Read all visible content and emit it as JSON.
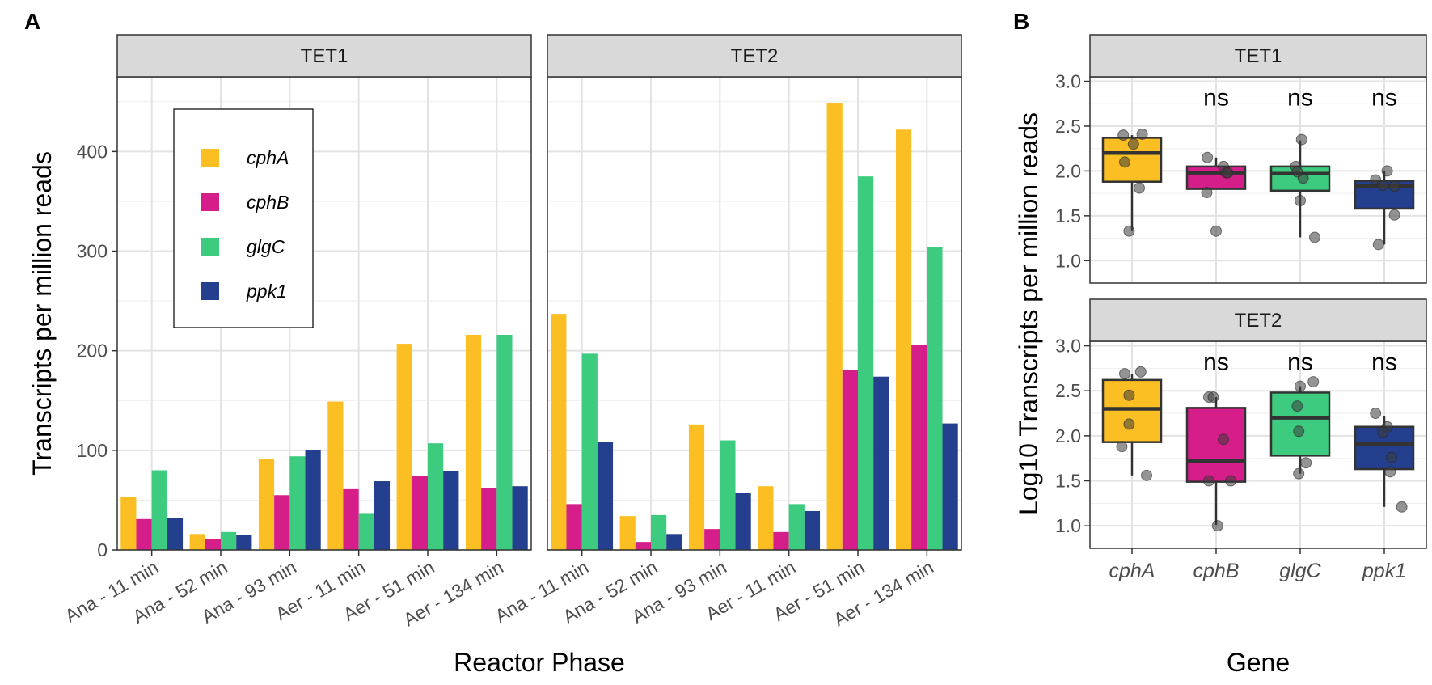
{
  "panel_labels": {
    "a": "A",
    "b": "B"
  },
  "chart_data": [
    {
      "type": "bar",
      "panel": "A",
      "xlabel": "Reactor Phase",
      "ylabel": "Transcripts per million reads",
      "ylim": [
        0,
        475
      ],
      "yticks": [
        0,
        100,
        200,
        300,
        400
      ],
      "categories": [
        "Ana - 11 min",
        "Ana - 52 min",
        "Ana - 93 min",
        "Aer - 11 min",
        "Aer - 51 min",
        "Aer - 134 min"
      ],
      "legend": [
        {
          "name": "cphA",
          "color": "#FBBF24"
        },
        {
          "name": "cphB",
          "color": "#D61E8B"
        },
        {
          "name": "glgC",
          "color": "#3CCB7F"
        },
        {
          "name": "ppk1",
          "color": "#233F8E"
        }
      ],
      "legend_position": "top-left",
      "facets": [
        {
          "name": "TET1",
          "series": [
            {
              "name": "cphA",
              "values": [
                53,
                16,
                91,
                149,
                207,
                216
              ]
            },
            {
              "name": "cphB",
              "values": [
                31,
                11,
                55,
                61,
                74,
                62
              ]
            },
            {
              "name": "glgC",
              "values": [
                80,
                18,
                94,
                37,
                107,
                216
              ]
            },
            {
              "name": "ppk1",
              "values": [
                32,
                15,
                100,
                69,
                79,
                64
              ]
            }
          ]
        },
        {
          "name": "TET2",
          "series": [
            {
              "name": "cphA",
              "values": [
                237,
                34,
                126,
                64,
                449,
                422
              ]
            },
            {
              "name": "cphB",
              "values": [
                46,
                8,
                21,
                18,
                181,
                206
              ]
            },
            {
              "name": "glgC",
              "values": [
                197,
                35,
                110,
                46,
                375,
                304
              ]
            },
            {
              "name": "ppk1",
              "values": [
                108,
                16,
                57,
                39,
                174,
                127
              ]
            }
          ]
        }
      ]
    },
    {
      "type": "box",
      "panel": "B",
      "xlabel": "Gene",
      "ylabel": "Log10 Transcripts per million reads",
      "ylim": [
        0.75,
        3.05
      ],
      "yticks": [
        "1.0",
        "1.5",
        "2.0",
        "2.5",
        "3.0"
      ],
      "categories": [
        "cphA",
        "cphB",
        "glgC",
        "ppk1"
      ],
      "colors": [
        "#FBBF24",
        "#D61E8B",
        "#3CCB7F",
        "#233F8E"
      ],
      "significance_label": "ns",
      "facets": [
        {
          "name": "TET1",
          "significance": [
            "",
            "ns",
            "ns",
            "ns"
          ],
          "boxes": [
            {
              "q1": 1.88,
              "median": 2.2,
              "q3": 2.37,
              "whisker_low": 1.33,
              "whisker_high": 2.4,
              "points": [
                [
                  -0.3,
                  2.4
                ],
                [
                  -0.25,
                  2.1
                ],
                [
                  0.05,
                  2.3
                ],
                [
                  0.35,
                  2.41
                ],
                [
                  0.25,
                  1.81
                ],
                [
                  -0.1,
                  1.33
                ]
              ]
            },
            {
              "q1": 1.8,
              "median": 1.98,
              "q3": 2.05,
              "whisker_low": 1.8,
              "whisker_high": 2.15,
              "points": [
                [
                  -0.3,
                  2.15
                ],
                [
                  -0.32,
                  1.76
                ],
                [
                  0.35,
                  1.98
                ],
                [
                  0.25,
                  2.05
                ],
                [
                  0.0,
                  1.33
                ],
                [
                  0.4,
                  1.98
                ]
              ]
            },
            {
              "q1": 1.78,
              "median": 1.97,
              "q3": 2.05,
              "whisker_low": 1.26,
              "whisker_high": 2.34,
              "points": [
                [
                  0.05,
                  2.35
                ],
                [
                  -0.15,
                  2.05
                ],
                [
                  0.1,
                  1.92
                ],
                [
                  -0.1,
                  1.99
                ],
                [
                  0.0,
                  1.67
                ],
                [
                  0.5,
                  1.26
                ]
              ]
            },
            {
              "q1": 1.58,
              "median": 1.83,
              "q3": 1.89,
              "whisker_low": 1.18,
              "whisker_high": 2.0,
              "points": [
                [
                  -0.3,
                  1.9
                ],
                [
                  0.1,
                  2.0
                ],
                [
                  -0.05,
                  1.84
                ],
                [
                  0.35,
                  1.83
                ],
                [
                  0.35,
                  1.51
                ],
                [
                  -0.2,
                  1.18
                ]
              ]
            }
          ]
        },
        {
          "name": "TET2",
          "significance": [
            "",
            "ns",
            "ns",
            "ns"
          ],
          "boxes": [
            {
              "q1": 1.93,
              "median": 2.3,
              "q3": 2.62,
              "whisker_low": 1.56,
              "whisker_high": 2.69,
              "points": [
                [
                  -0.25,
                  2.69
                ],
                [
                  0.3,
                  2.71
                ],
                [
                  -0.1,
                  2.45
                ],
                [
                  -0.1,
                  2.13
                ],
                [
                  -0.35,
                  1.88
                ],
                [
                  0.5,
                  1.56
                ]
              ]
            },
            {
              "q1": 1.49,
              "median": 1.72,
              "q3": 2.31,
              "whisker_low": 1.01,
              "whisker_high": 2.43,
              "points": [
                [
                  -0.25,
                  2.43
                ],
                [
                  -0.1,
                  2.43
                ],
                [
                  0.25,
                  1.96
                ],
                [
                  -0.25,
                  1.5
                ],
                [
                  0.5,
                  1.5
                ],
                [
                  0.05,
                  1.0
                ]
              ]
            },
            {
              "q1": 1.78,
              "median": 2.2,
              "q3": 2.48,
              "whisker_low": 1.58,
              "whisker_high": 2.55,
              "points": [
                [
                  0.45,
                  2.6
                ],
                [
                  0.0,
                  2.55
                ],
                [
                  -0.1,
                  2.33
                ],
                [
                  -0.05,
                  2.05
                ],
                [
                  0.2,
                  1.7
                ],
                [
                  -0.05,
                  1.58
                ]
              ]
            },
            {
              "q1": 1.63,
              "median": 1.91,
              "q3": 2.1,
              "whisker_low": 1.21,
              "whisker_high": 2.22,
              "points": [
                [
                  -0.3,
                  2.25
                ],
                [
                  0.1,
                  2.1
                ],
                [
                  -0.05,
                  2.04
                ],
                [
                  0.25,
                  1.76
                ],
                [
                  0.2,
                  1.6
                ],
                [
                  0.6,
                  1.21
                ]
              ]
            }
          ]
        }
      ]
    }
  ]
}
